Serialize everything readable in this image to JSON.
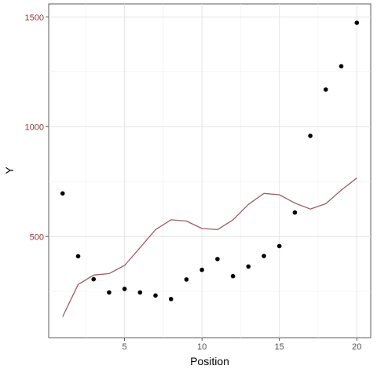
{
  "chart_data": {
    "type": "scatter",
    "title": "",
    "xlabel": "Position",
    "ylabel": "Y",
    "xlim": [
      0.1,
      20.9
    ],
    "ylim": [
      40,
      1560
    ],
    "x_ticks": [
      5,
      10,
      15,
      20
    ],
    "y_ticks": [
      500,
      1000,
      1500
    ],
    "x_tick_labels": [
      "5",
      "10",
      "15",
      "20"
    ],
    "y_tick_labels": [
      "500",
      "1000",
      "1500"
    ],
    "grid": true,
    "legend": "none",
    "series": [
      {
        "type": "scatter",
        "color": "#000000",
        "x": [
          1,
          2,
          3,
          4,
          5,
          6,
          7,
          8,
          9,
          10,
          11,
          12,
          13,
          14,
          15,
          16,
          17,
          18,
          19,
          20
        ],
        "y": [
          697,
          411,
          306,
          246,
          262,
          246,
          232,
          216,
          305,
          349,
          398,
          320,
          364,
          412,
          457,
          610,
          959,
          1170,
          1276,
          1474
        ]
      },
      {
        "type": "line",
        "color": "#9b5f66",
        "x": [
          1,
          2,
          3,
          4,
          5,
          6,
          7,
          8,
          9,
          10,
          11,
          12,
          13,
          14,
          15,
          16,
          17,
          18,
          19,
          20
        ],
        "y": [
          135,
          282,
          325,
          332,
          369,
          450,
          532,
          577,
          571,
          537,
          532,
          576,
          647,
          697,
          691,
          653,
          626,
          650,
          712,
          767
        ]
      }
    ]
  }
}
